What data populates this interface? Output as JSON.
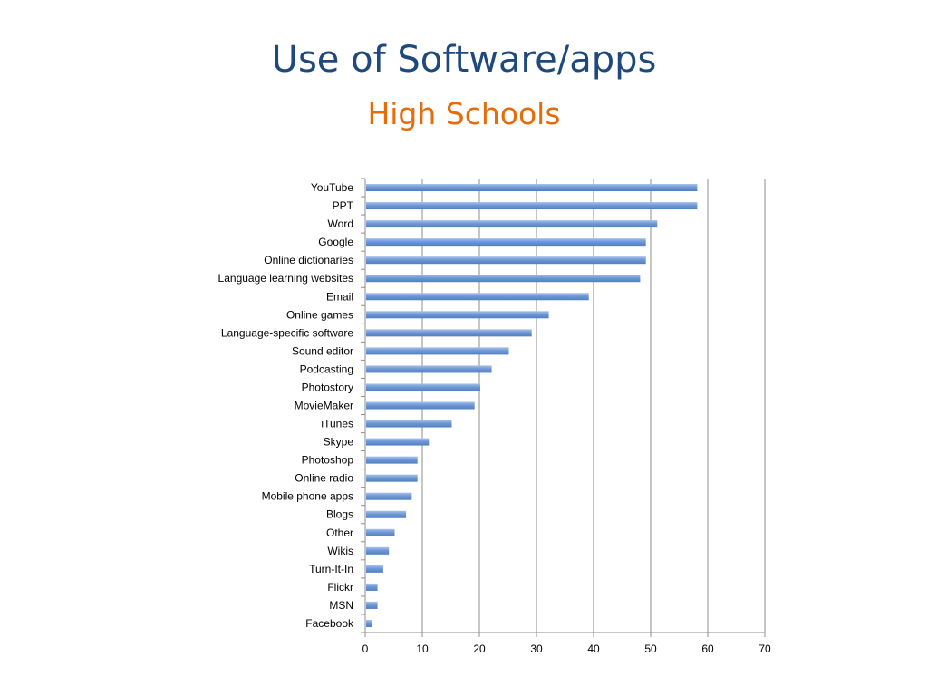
{
  "slide": {
    "title": "Use of Software/apps",
    "subtitle": "High Schools"
  },
  "colors": {
    "title": "#1f497d",
    "subtitle": "#e46c0a",
    "bar": "#4f81bd",
    "bar_light": "#a7c1ec",
    "gridline": "#8c8c8c"
  },
  "chart_data": {
    "type": "bar",
    "orientation": "horizontal",
    "categories": [
      "YouTube",
      "PPT",
      "Word",
      "Google",
      "Online dictionaries",
      "Language learning websites",
      "Email",
      "Online games",
      "Language-specific software",
      "Sound editor",
      "Podcasting",
      "Photostory",
      "MovieMaker",
      "iTunes",
      "Skype",
      "Photoshop",
      "Online radio",
      "Mobile phone apps",
      "Blogs",
      "Other",
      "Wikis",
      "Turn-It-In",
      "Flickr",
      "MSN",
      "Facebook"
    ],
    "values": [
      58,
      58,
      51,
      49,
      49,
      48,
      39,
      32,
      29,
      25,
      22,
      20,
      19,
      15,
      11,
      9,
      9,
      8,
      7,
      5,
      4,
      3,
      2,
      2,
      1
    ],
    "xlim": [
      0,
      70
    ],
    "xticks": [
      0,
      10,
      20,
      30,
      40,
      50,
      60,
      70
    ],
    "grid": true,
    "legend": "none"
  }
}
